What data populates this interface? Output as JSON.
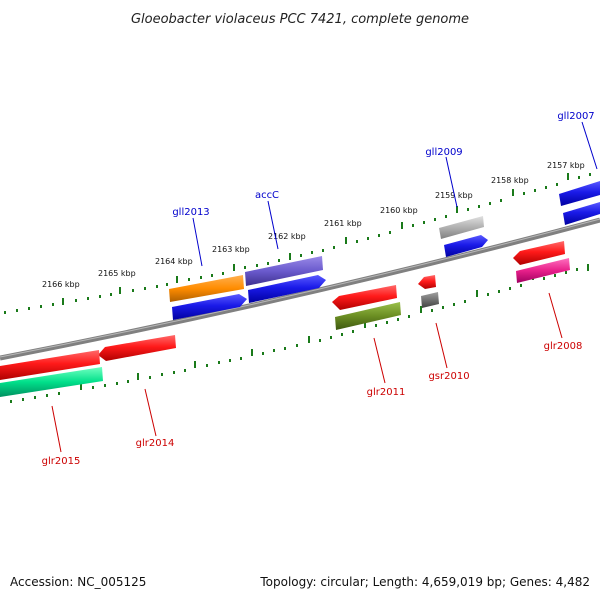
{
  "title": "Gloeobacter violaceus PCC 7421, complete genome",
  "accession_text": "Accession: NC_005125",
  "topology_text": "Topology: circular; Length: 4,659,019 bp; Genes: 4,482",
  "colors": {
    "forward_label": "#0000cc",
    "reverse_label": "#cc0000",
    "tick": "#006400",
    "backbone": "#808080"
  },
  "ticks": [
    {
      "label": "2166 kbp"
    },
    {
      "label": "2165 kbp"
    },
    {
      "label": "2164 kbp"
    },
    {
      "label": "2163 kbp"
    },
    {
      "label": "2162 kbp"
    },
    {
      "label": "2161 kbp"
    },
    {
      "label": "2160 kbp"
    },
    {
      "label": "2159 kbp"
    },
    {
      "label": "2158 kbp"
    },
    {
      "label": "2157 kbp"
    }
  ],
  "genes": [
    {
      "label": "gll2007",
      "strand": "forward",
      "color": "#1010e0"
    },
    {
      "label": "gll2009",
      "strand": "forward",
      "color": "#a8a8a8"
    },
    {
      "label": "accC",
      "strand": "forward",
      "color": "#6a5acd"
    },
    {
      "label": "gll2013",
      "strand": "forward",
      "color": "#ff8c00"
    },
    {
      "label": "glr2008",
      "strand": "reverse",
      "color": "#e8208a"
    },
    {
      "label": "gsr2010",
      "strand": "reverse",
      "color": "#707070"
    },
    {
      "label": "glr2011",
      "strand": "reverse",
      "color": "#6b8e23"
    },
    {
      "label": "glr2014",
      "strand": "reverse",
      "color": "#ee1111"
    },
    {
      "label": "glr2015",
      "strand": "reverse",
      "color": "#00e08a"
    }
  ]
}
